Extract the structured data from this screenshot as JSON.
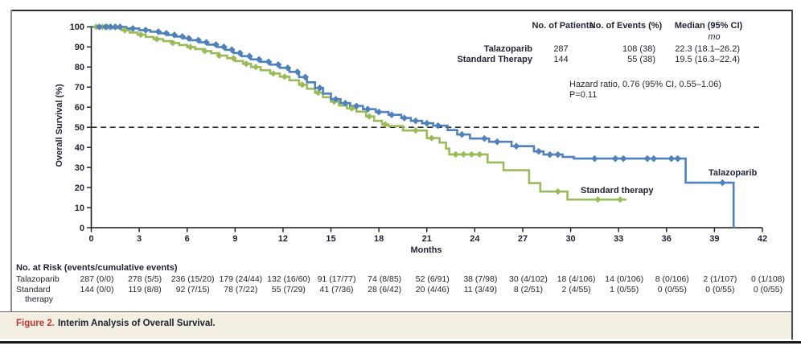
{
  "figure": {
    "caption_label": "Figure 2.",
    "caption_text": "Interim Analysis of Overall Survival."
  },
  "colors": {
    "talazoparib_blue": "#4f81bd",
    "standard_green": "#9bbb59",
    "axis": "#1c1c1c",
    "text": "#20242c",
    "caption_label_red": "#c43230",
    "caption_bg": "#f4efe3",
    "reference_line": "#0d0d0d"
  },
  "summary_table": {
    "headers": [
      "No. of Patients",
      "No. of Events (%)",
      "Median (95% CI)"
    ],
    "unit_note": "mo",
    "rows": [
      {
        "label": "Talazoparib",
        "patients": "287",
        "events": "108 (38)",
        "median": "22.3 (18.1–26.2)"
      },
      {
        "label": "Standard Therapy",
        "patients": "144",
        "events": "55 (38)",
        "median": "19.5 (16.3–22.4)"
      }
    ],
    "hazard_line1": "Hazard ratio, 0.76 (95% CI, 0.55–1.06)",
    "hazard_line2": "P=0.11"
  },
  "annotations": {
    "talazoparib": "Talazoparib",
    "standard": "Standard therapy"
  },
  "at_risk": {
    "title": "No. at Risk (events/cumulative events)",
    "rows": [
      {
        "label": "Talazoparib",
        "label_line2": "",
        "values": [
          "287 (0/0)",
          "278 (5/5)",
          "236 (15/20)",
          "179 (24/44)",
          "132 (16/60)",
          "91 (17/77)",
          "74 (8/85)",
          "52 (6/91)",
          "38 (7/98)",
          "30 (4/102)",
          "18 (4/106)",
          "14 (0/106)",
          "8 (0/106)",
          "2 (1/107)",
          "0 (1/108)"
        ]
      },
      {
        "label": "Standard",
        "label_line2": "therapy",
        "values": [
          "144 (0/0)",
          "119 (8/8)",
          "92 (7/15)",
          "78 (7/22)",
          "55 (7/29)",
          "41 (7/36)",
          "28 (6/42)",
          "20 (4/46)",
          "11 (3/49)",
          "8 (2/51)",
          "2 (4/55)",
          "1 (0/55)",
          "0 (0/55)",
          "0 (0/55)",
          "0 (0/55)"
        ]
      }
    ]
  },
  "chart_data": {
    "type": "line",
    "subtype": "kaplan-meier-step",
    "xlabel": "Months",
    "ylabel": "Overall Survival (%)",
    "xlim": [
      0,
      42
    ],
    "ylim": [
      0,
      100
    ],
    "x_ticks": [
      0,
      3,
      6,
      9,
      12,
      15,
      18,
      21,
      24,
      27,
      30,
      33,
      36,
      39,
      42
    ],
    "y_ticks": [
      0,
      10,
      20,
      30,
      40,
      50,
      60,
      70,
      80,
      90,
      100
    ],
    "reference_line_y": 50,
    "grid": false,
    "series": [
      {
        "name": "Talazoparib",
        "color": "#4f81bd",
        "start": [
          0,
          100
        ],
        "steps": [
          [
            2.2,
            99.2
          ],
          [
            3,
            98.4
          ],
          [
            3.7,
            97.6
          ],
          [
            4.3,
            96.8
          ],
          [
            4.8,
            96
          ],
          [
            5.3,
            95.2
          ],
          [
            5.8,
            94.3
          ],
          [
            6.2,
            93.4
          ],
          [
            6.8,
            92.3
          ],
          [
            7.3,
            91.2
          ],
          [
            7.9,
            90
          ],
          [
            8.4,
            88.6
          ],
          [
            8.9,
            87
          ],
          [
            9.4,
            85.4
          ],
          [
            10,
            83.8
          ],
          [
            10.6,
            82.6
          ],
          [
            11.2,
            81.2
          ],
          [
            11.8,
            79.6
          ],
          [
            12.4,
            77.6
          ],
          [
            13,
            75
          ],
          [
            13.5,
            72.4
          ],
          [
            14,
            69.6
          ],
          [
            14.5,
            66.8
          ],
          [
            15,
            64
          ],
          [
            15.6,
            62
          ],
          [
            16.2,
            60.6
          ],
          [
            17,
            59
          ],
          [
            17.8,
            57.6
          ],
          [
            18.6,
            56.2
          ],
          [
            19.4,
            54.6
          ],
          [
            20,
            53.2
          ],
          [
            20.7,
            52
          ],
          [
            21.4,
            50.8
          ],
          [
            22.3,
            48.6
          ],
          [
            22.9,
            46.4
          ],
          [
            23.7,
            44.4
          ],
          [
            24.9,
            42.8
          ],
          [
            26.3,
            40.6
          ],
          [
            27.7,
            38
          ],
          [
            28.3,
            36.4
          ],
          [
            29.5,
            35.2
          ],
          [
            30.2,
            34.4
          ],
          [
            37.2,
            22.4
          ],
          [
            40.2,
            0
          ]
        ],
        "end_time": 40.2,
        "censor_times": [
          0.5,
          0.9,
          1.2,
          1.5,
          1.8,
          2.6,
          3.4,
          4.2,
          4.7,
          5.2,
          5.7,
          6.1,
          6.7,
          7.2,
          7.8,
          8.3,
          8.8,
          9.3,
          9.9,
          10.5,
          11.1,
          11.7,
          12.3,
          12.9,
          13.4,
          14.3,
          15.3,
          15.9,
          16.6,
          17.3,
          18,
          18.8,
          19.6,
          20.3,
          21,
          21.7,
          23.2,
          24.6,
          25.4,
          26.6,
          28,
          28.7,
          29.2,
          31.5,
          32.8,
          33.3,
          34.8,
          35.2,
          36.3,
          36.7,
          39.5
        ]
      },
      {
        "name": "Standard therapy",
        "color": "#9bbb59",
        "start": [
          0,
          100
        ],
        "steps": [
          [
            1.3,
            99.3
          ],
          [
            1.9,
            98.3
          ],
          [
            2.4,
            97.2
          ],
          [
            2.9,
            96.1
          ],
          [
            3.4,
            95
          ],
          [
            3.9,
            93.9
          ],
          [
            4.5,
            92.9
          ],
          [
            5,
            92
          ],
          [
            5.5,
            91
          ],
          [
            6,
            90
          ],
          [
            6.5,
            89
          ],
          [
            7,
            88
          ],
          [
            7.5,
            86.9
          ],
          [
            8,
            85.7
          ],
          [
            8.5,
            84.4
          ],
          [
            9,
            83
          ],
          [
            9.5,
            81.6
          ],
          [
            10,
            80
          ],
          [
            10.6,
            78.4
          ],
          [
            11.2,
            76.8
          ],
          [
            11.8,
            75.2
          ],
          [
            12.4,
            73.4
          ],
          [
            13,
            71.2
          ],
          [
            13.5,
            69.2
          ],
          [
            14,
            67.2
          ],
          [
            14.5,
            65
          ],
          [
            15,
            62.8
          ],
          [
            15.5,
            60.8
          ],
          [
            16,
            59.4
          ],
          [
            16.6,
            57.8
          ],
          [
            17.2,
            55.4
          ],
          [
            17.7,
            53.2
          ],
          [
            18.2,
            51.4
          ],
          [
            18.6,
            50.6
          ],
          [
            19.5,
            48.4
          ],
          [
            21,
            44.6
          ],
          [
            21.8,
            42.4
          ],
          [
            22.2,
            39.4
          ],
          [
            22.4,
            36.5
          ],
          [
            24.8,
            32.5
          ],
          [
            25.8,
            28.6
          ],
          [
            27.4,
            22.2
          ],
          [
            28.1,
            18
          ],
          [
            29.8,
            14
          ]
        ],
        "end_time": 33.5,
        "censor_times": [
          0.3,
          0.7,
          1,
          2.1,
          3.1,
          4.1,
          5.1,
          6.2,
          7.1,
          8,
          8.9,
          9.7,
          10.3,
          11.4,
          12.1,
          13.2,
          14.2,
          15.2,
          16.3,
          17.4,
          18.4,
          20.3,
          21.3,
          22.8,
          23.3,
          23.8,
          24.3,
          29.2,
          31.7,
          33.1
        ]
      }
    ],
    "medians": {
      "Talazoparib": 22.3,
      "Standard Therapy": 19.5
    }
  }
}
